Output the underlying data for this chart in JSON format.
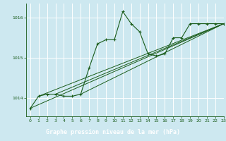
{
  "title": "Graphe pression niveau de la mer (hPa)",
  "bg_color": "#cde8f0",
  "plot_bg_color": "#cde8f0",
  "label_bg_color": "#2d6b2d",
  "grid_color": "#ffffff",
  "line_color": "#1a5c1a",
  "label_text_color": "#ffffff",
  "axis_text_color": "#1a5c1a",
  "xlim": [
    -0.5,
    23
  ],
  "ylim": [
    1013.55,
    1016.35
  ],
  "yticks": [
    1014,
    1015,
    1016
  ],
  "xticks": [
    0,
    1,
    2,
    3,
    4,
    5,
    6,
    7,
    8,
    9,
    10,
    11,
    12,
    13,
    14,
    15,
    16,
    17,
    18,
    19,
    20,
    21,
    22,
    23
  ],
  "series": [
    [
      0,
      1013.75
    ],
    [
      1,
      1014.05
    ],
    [
      2,
      1014.1
    ],
    [
      3,
      1014.1
    ],
    [
      4,
      1014.05
    ],
    [
      5,
      1014.05
    ],
    [
      6,
      1014.1
    ],
    [
      6,
      1014.05
    ],
    [
      7,
      1014.75
    ],
    [
      7,
      1014.8
    ],
    [
      8,
      1015.35
    ],
    [
      9,
      1015.45
    ],
    [
      10,
      1015.45
    ],
    [
      11,
      1016.15
    ],
    [
      12,
      1015.85
    ],
    [
      13,
      1015.65
    ],
    [
      14,
      1015.1
    ],
    [
      15,
      1015.05
    ],
    [
      16,
      1015.1
    ],
    [
      17,
      1015.5
    ],
    [
      18,
      1015.5
    ],
    [
      19,
      1015.85
    ],
    [
      20,
      1015.85
    ],
    [
      21,
      1015.85
    ],
    [
      22,
      1015.85
    ],
    [
      23,
      1015.85
    ]
  ],
  "main_series_x": [
    0,
    1,
    2,
    3,
    4,
    5,
    6,
    7,
    8,
    9,
    10,
    11,
    12,
    13,
    14,
    15,
    16,
    17,
    18,
    19,
    20,
    21,
    22,
    23
  ],
  "main_series_y": [
    1013.75,
    1014.05,
    1014.1,
    1014.1,
    1014.05,
    1014.05,
    1014.1,
    1014.75,
    1015.35,
    1015.45,
    1015.45,
    1016.15,
    1015.85,
    1015.65,
    1015.1,
    1015.05,
    1015.1,
    1015.5,
    1015.5,
    1015.85,
    1015.85,
    1015.85,
    1015.85,
    1015.85
  ],
  "linear_lines": [
    {
      "x": [
        0,
        23
      ],
      "y": [
        1013.75,
        1015.85
      ]
    },
    {
      "x": [
        1,
        23
      ],
      "y": [
        1014.05,
        1015.85
      ]
    },
    {
      "x": [
        3,
        23
      ],
      "y": [
        1014.1,
        1015.85
      ]
    },
    {
      "x": [
        6,
        23
      ],
      "y": [
        1014.1,
        1015.85
      ]
    }
  ]
}
